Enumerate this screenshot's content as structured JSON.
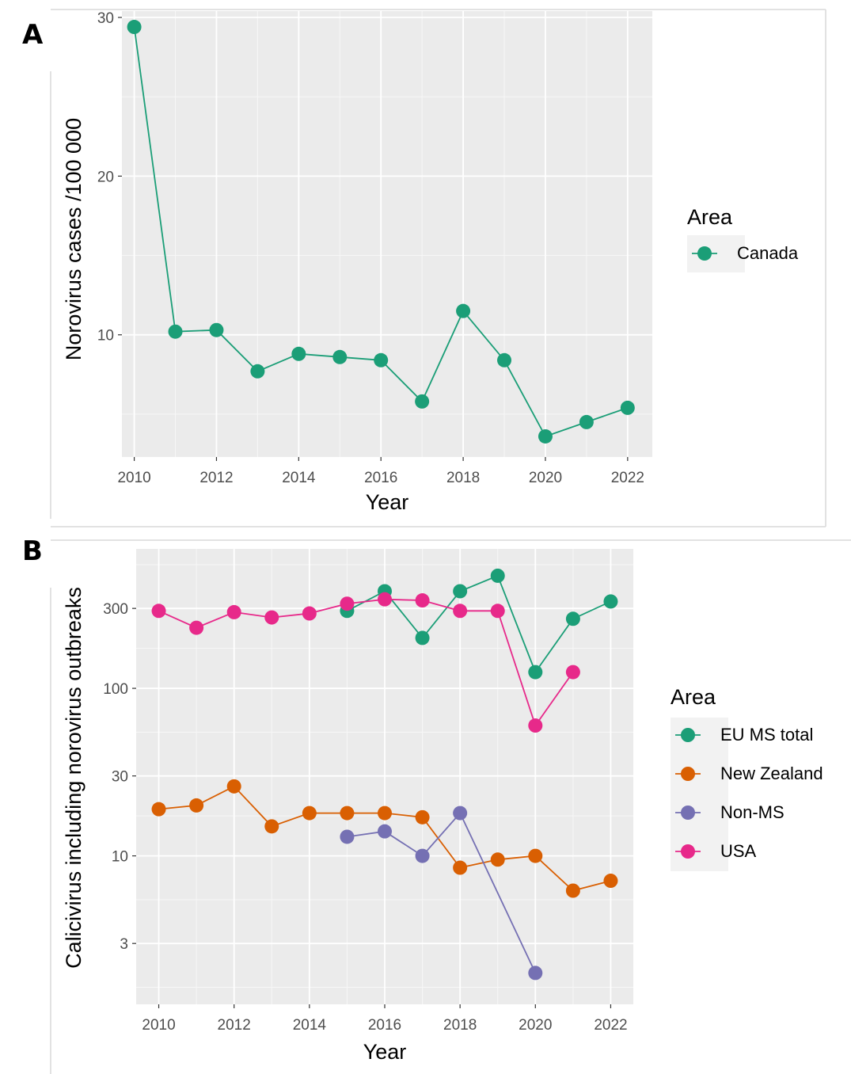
{
  "chart_data": [
    {
      "panel": "A",
      "type": "line",
      "xlabel": "Year",
      "ylabel": "Norovirus cases /100 000",
      "xlim": [
        2009.7,
        2022.6
      ],
      "ylim": [
        2.3,
        30.4
      ],
      "y_scale": "linear",
      "xticks": [
        2010,
        2012,
        2014,
        2016,
        2018,
        2020,
        2022
      ],
      "yticks": [
        10,
        20,
        30
      ],
      "grid": true,
      "legend": {
        "title": "Area",
        "position": "right"
      },
      "series": [
        {
          "name": "Canada",
          "color": "#1b9e77",
          "x": [
            2010,
            2011,
            2012,
            2013,
            2014,
            2015,
            2016,
            2017,
            2018,
            2019,
            2020,
            2021,
            2022
          ],
          "y": [
            29.4,
            10.2,
            10.3,
            7.7,
            8.8,
            8.6,
            8.4,
            5.8,
            11.5,
            8.4,
            3.6,
            4.5,
            5.4
          ]
        }
      ]
    },
    {
      "panel": "B",
      "type": "line",
      "xlabel": "Year",
      "ylabel": "Calicivirus including norovirus outbreaks",
      "xlim": [
        2009.4,
        2022.6
      ],
      "ylim": [
        1.3,
        680
      ],
      "y_scale": "log10",
      "xticks": [
        2010,
        2012,
        2014,
        2016,
        2018,
        2020,
        2022
      ],
      "yticks": [
        3,
        10,
        30,
        100,
        300
      ],
      "grid": true,
      "legend": {
        "title": "Area",
        "position": "right"
      },
      "series": [
        {
          "name": "EU MS total",
          "color": "#1b9e77",
          "x": [
            2015,
            2016,
            2017,
            2018,
            2019,
            2020,
            2021,
            2022
          ],
          "y": [
            290,
            380,
            200,
            380,
            470,
            125,
            260,
            330
          ]
        },
        {
          "name": "New Zealand",
          "color": "#d95f02",
          "x": [
            2010,
            2011,
            2012,
            2013,
            2014,
            2015,
            2016,
            2017,
            2018,
            2019,
            2020,
            2021,
            2022
          ],
          "y": [
            19,
            20,
            26,
            15,
            18,
            18,
            18,
            17,
            8.5,
            9.5,
            10,
            6.2,
            7.1
          ]
        },
        {
          "name": "Non-MS",
          "color": "#7570b3",
          "x": [
            2015,
            2016,
            2017,
            2018,
            2020
          ],
          "y": [
            13,
            14,
            10,
            18,
            2
          ]
        },
        {
          "name": "USA",
          "color": "#e7298a",
          "x": [
            2010,
            2011,
            2012,
            2013,
            2014,
            2015,
            2016,
            2017,
            2018,
            2019,
            2020,
            2021
          ],
          "y": [
            290,
            230,
            285,
            265,
            280,
            320,
            340,
            335,
            290,
            290,
            60,
            125
          ]
        }
      ]
    }
  ]
}
